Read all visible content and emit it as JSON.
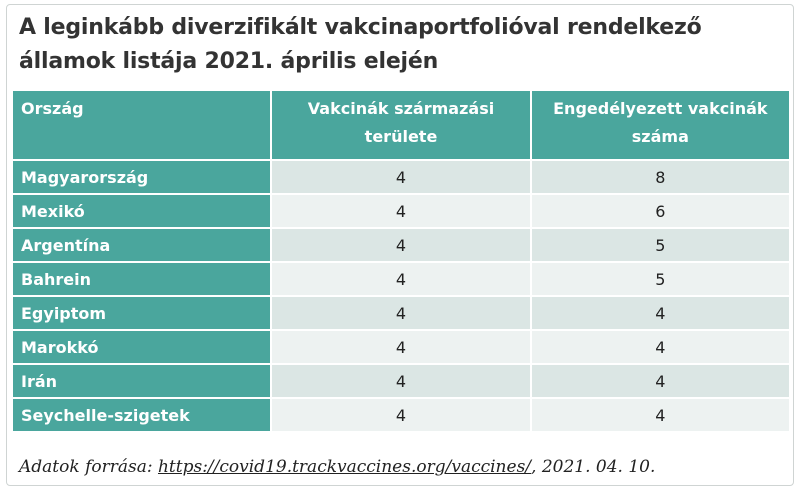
{
  "title": "A leginkább diverzifikált vakcinaportfolióval rendelkező államok listája 2021. április elején",
  "source": {
    "prefix": "Adatok forrása: ",
    "link": "https://covid19.trackvaccines.org/vaccines/",
    "suffix": ", 2021. 04. 10."
  },
  "colors": {
    "header_bg": "#4aa69d",
    "row_bg_light": "#dbe6e4",
    "row_bg_lighter": "#edf2f1"
  },
  "chart_data": {
    "type": "table",
    "title": "A leginkább diverzifikált vakcinaportfolióval rendelkező államok listája 2021. április elején",
    "columns": [
      "Ország",
      "Vakcinák származási területe",
      "Engedélyezett vakcinák száma"
    ],
    "rows": [
      [
        "Magyarország",
        "4",
        "8"
      ],
      [
        "Mexikó",
        "4",
        "6"
      ],
      [
        "Argentína",
        "4",
        "5"
      ],
      [
        "Bahrein",
        "4",
        "5"
      ],
      [
        "Egyiptom",
        "4",
        "4"
      ],
      [
        "Marokkó",
        "4",
        "4"
      ],
      [
        "Irán",
        "4",
        "4"
      ],
      [
        "Seychelle-szigetek",
        "4",
        "4"
      ]
    ]
  }
}
